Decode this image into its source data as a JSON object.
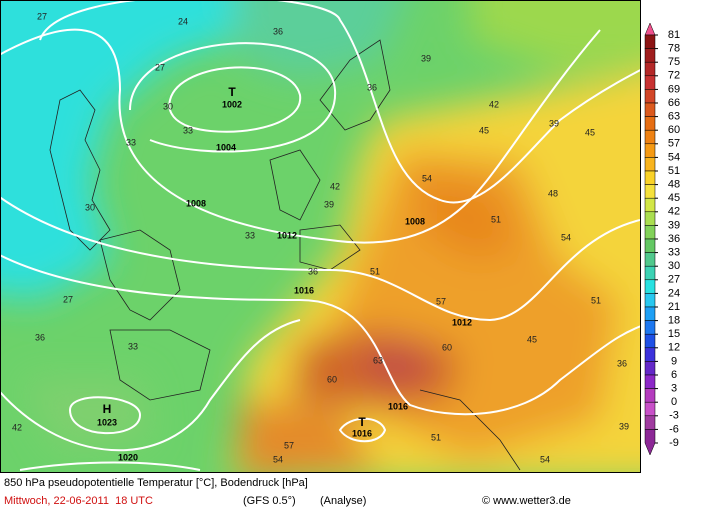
{
  "map": {
    "temperature_labels": [
      27,
      24,
      27,
      30,
      33,
      33,
      36,
      36,
      39,
      42,
      45,
      39,
      45,
      48,
      54,
      51,
      54,
      39,
      42,
      36,
      33,
      30,
      27,
      36,
      33,
      42,
      51,
      57,
      60,
      63,
      60,
      57,
      54,
      51,
      54,
      45,
      51,
      36,
      39
    ],
    "pressure_labels": [
      1002,
      1004,
      1008,
      1008,
      1012,
      1012,
      1016,
      1016,
      1016,
      1020,
      1023
    ],
    "center_labels": [
      "T",
      "T",
      "H"
    ]
  },
  "legend": {
    "values": [
      81,
      78,
      75,
      72,
      69,
      66,
      63,
      60,
      57,
      54,
      51,
      48,
      45,
      42,
      39,
      36,
      33,
      30,
      27,
      24,
      21,
      18,
      15,
      12,
      9,
      6,
      3,
      0,
      -3,
      -6,
      -9
    ],
    "colors": [
      "#f0508c",
      "#8c1414",
      "#a01e1e",
      "#b42828",
      "#c83232",
      "#d24628",
      "#dc5a1e",
      "#e66e14",
      "#ee8214",
      "#f59a14",
      "#f8b41e",
      "#fad228",
      "#f5e13c",
      "#d2e646",
      "#aade50",
      "#82d25a",
      "#64c864",
      "#50c88c",
      "#3cd2b4",
      "#28e1e1",
      "#28c8f0",
      "#1ea0f5",
      "#1e78f0",
      "#1e50e6",
      "#3c32dc",
      "#6428c8",
      "#8c28c8",
      "#b43cbe",
      "#c850c8",
      "#a03ca0",
      "#8c2896"
    ]
  },
  "footer": {
    "title": "850 hPa pseudopotentielle Temperatur [°C], Bodendruck [hPa]",
    "date": "Mittwoch, 22-06-2011  18 UTC",
    "model": "(GFS 0.5°)",
    "run": "(Analyse)",
    "credit": "© www.wetter3.de"
  }
}
